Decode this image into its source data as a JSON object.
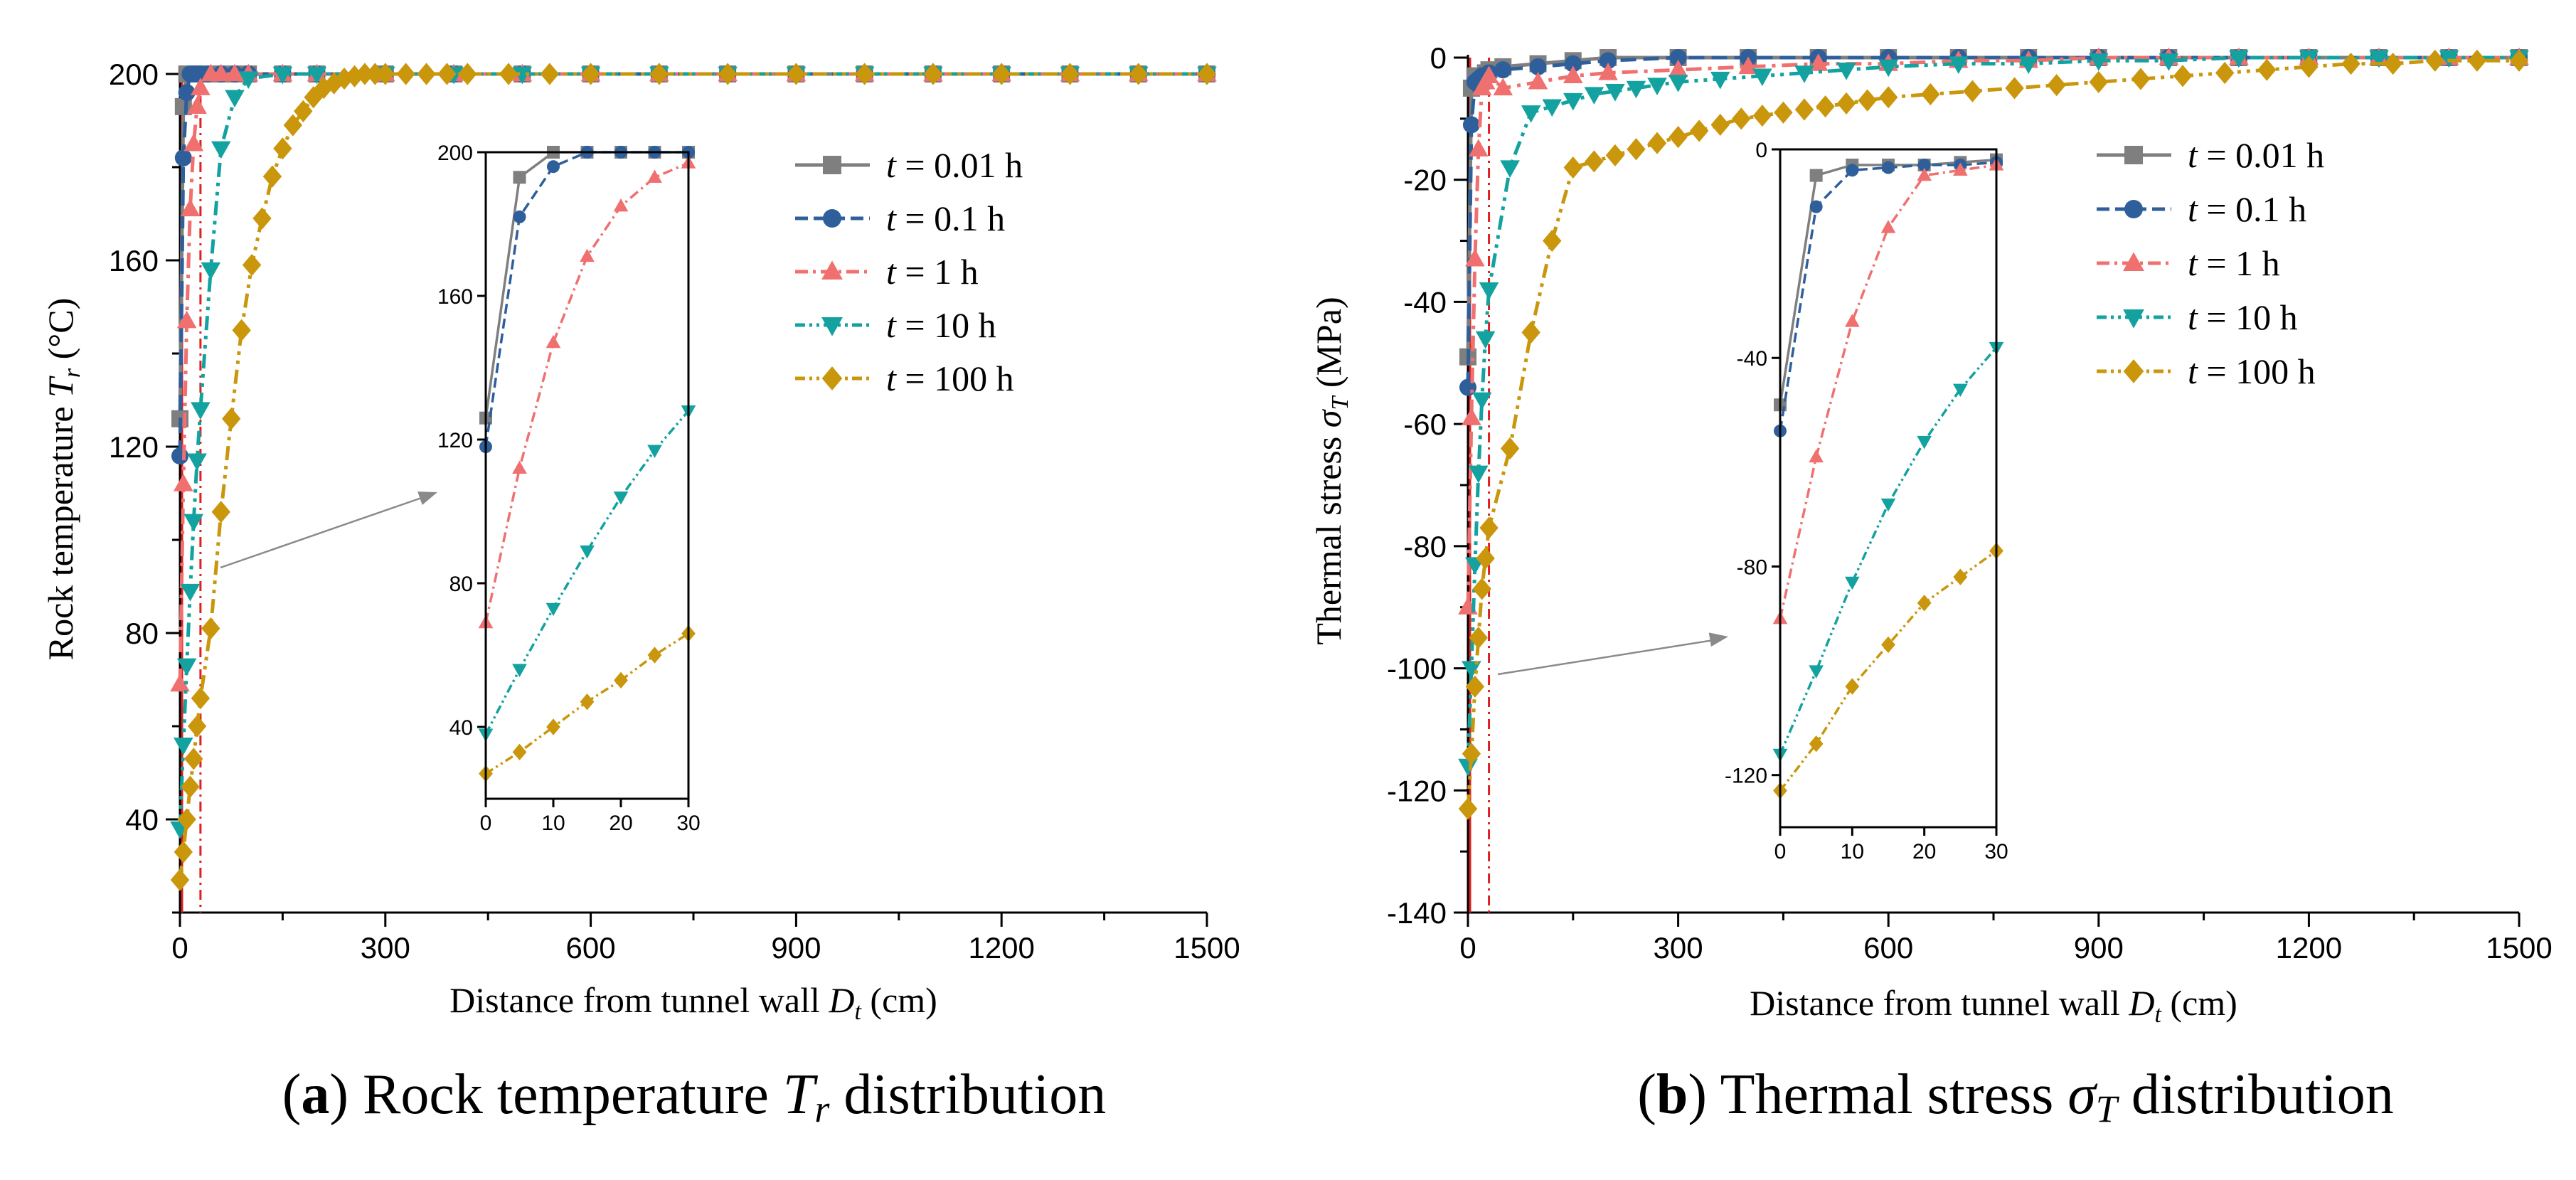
{
  "chart_data": [
    {
      "type": "line",
      "panel": "a",
      "caption": {
        "letter": "a",
        "text": "Rock temperature",
        "symbol": "T",
        "sub": "r",
        "tail": "distribution"
      },
      "xlabel": {
        "text": "Distance from tunnel wall",
        "symbol": "D",
        "sub": "t",
        "unit": "(cm)"
      },
      "ylabel": {
        "text": "Rock temperature",
        "symbol": "T",
        "sub": "r",
        "unit": "(°C)"
      },
      "xlim": [
        0,
        1500
      ],
      "ylim": [
        20,
        200
      ],
      "xticks": [
        "0",
        "300",
        "600",
        "900",
        "1200",
        "1500"
      ],
      "yticks": [
        "40",
        "80",
        "120",
        "160",
        "200"
      ],
      "ytick_values": [
        40,
        80,
        120,
        160,
        200
      ],
      "series": [
        {
          "name": "t = 0.01 h",
          "t_label": "t",
          "rest": " = 0.01 h",
          "color": "#7f7f7f",
          "marker": "square",
          "dash": "solid",
          "x": [
            0,
            5,
            10,
            15,
            20,
            25,
            30,
            40,
            60,
            80,
            100,
            150,
            200,
            300,
            400,
            500,
            600,
            700,
            800,
            900,
            1000,
            1100,
            1200,
            1300,
            1400,
            1500
          ],
          "y": [
            126,
            193,
            200,
            200,
            200,
            200,
            200,
            200,
            200,
            200,
            200,
            200,
            200,
            200,
            200,
            200,
            200,
            200,
            200,
            200,
            200,
            200,
            200,
            200,
            200,
            200
          ]
        },
        {
          "name": "t = 0.1 h",
          "t_label": "t",
          "rest": " = 0.1 h",
          "color": "#2e5f9b",
          "marker": "circle",
          "dash": "dash",
          "x": [
            0,
            5,
            10,
            15,
            20,
            25,
            30,
            40,
            60,
            80,
            100,
            150,
            200,
            300,
            400,
            500,
            600,
            700,
            800,
            900,
            1000,
            1100,
            1200,
            1300,
            1400,
            1500
          ],
          "y": [
            118,
            182,
            196,
            200,
            200,
            200,
            200,
            200,
            200,
            200,
            200,
            200,
            200,
            200,
            200,
            200,
            200,
            200,
            200,
            200,
            200,
            200,
            200,
            200,
            200,
            200
          ]
        },
        {
          "name": "t = 1 h",
          "t_label": "t",
          "rest": " = 1 h",
          "color": "#f07070",
          "marker": "triangle-up",
          "dash": "dashdot",
          "x": [
            0,
            5,
            10,
            15,
            20,
            25,
            30,
            45,
            60,
            80,
            100,
            150,
            200,
            300,
            400,
            500,
            600,
            700,
            800,
            900,
            1000,
            1100,
            1200,
            1300,
            1400,
            1500
          ],
          "y": [
            69,
            112,
            147,
            171,
            185,
            193,
            197,
            200,
            200,
            200,
            200,
            200,
            200,
            200,
            200,
            200,
            200,
            200,
            200,
            200,
            200,
            200,
            200,
            200,
            200,
            200
          ]
        },
        {
          "name": "t = 10 h",
          "t_label": "t",
          "rest": " = 10 h",
          "color": "#13a2a0",
          "marker": "triangle-down",
          "dash": "dashdotdot",
          "x": [
            0,
            5,
            10,
            15,
            20,
            25,
            30,
            45,
            60,
            80,
            100,
            150,
            200,
            300,
            400,
            500,
            600,
            700,
            800,
            900,
            1000,
            1100,
            1200,
            1300,
            1400,
            1500
          ],
          "y": [
            38,
            56,
            73,
            89,
            104,
            117,
            128,
            158,
            184,
            195,
            199,
            200,
            200,
            200,
            200,
            200,
            200,
            200,
            200,
            200,
            200,
            200,
            200,
            200,
            200,
            200
          ]
        },
        {
          "name": "t = 100 h",
          "t_label": "t",
          "rest": " = 100 h",
          "color": "#c9960c",
          "marker": "diamond",
          "dash": "dashdotdot",
          "x": [
            0,
            5,
            10,
            15,
            20,
            25,
            30,
            45,
            60,
            75,
            90,
            105,
            120,
            135,
            150,
            165,
            180,
            195,
            210,
            225,
            240,
            255,
            270,
            285,
            300,
            330,
            360,
            390,
            420,
            480,
            540,
            600,
            700,
            800,
            900,
            1000,
            1100,
            1200,
            1300,
            1400,
            1500
          ],
          "y": [
            27,
            33,
            40,
            47,
            53,
            60,
            66,
            81,
            106,
            126,
            145,
            159,
            169,
            178,
            184,
            189,
            192,
            195,
            197,
            198,
            199,
            199.5,
            200,
            200,
            200,
            200,
            200,
            200,
            200,
            200,
            200,
            200,
            200,
            200,
            200,
            200,
            200,
            200,
            200,
            200,
            200
          ]
        }
      ],
      "inset": {
        "xlim": [
          0,
          30
        ],
        "ylim": [
          20,
          200
        ],
        "xticks": [
          "0",
          "10",
          "20",
          "30"
        ],
        "xtick_values": [
          0,
          10,
          20,
          30
        ],
        "yticks": [
          "40",
          "80",
          "120",
          "160",
          "200"
        ],
        "ytick_values": [
          40,
          80,
          120,
          160,
          200
        ]
      }
    },
    {
      "type": "line",
      "panel": "b",
      "caption": {
        "letter": "b",
        "text": "Thermal stress",
        "symbol": "σ",
        "sub": "T",
        "tail": "distribution"
      },
      "xlabel": {
        "text": "Distance from tunnel wall",
        "symbol": "D",
        "sub": "t",
        "unit": "(cm)"
      },
      "ylabel": {
        "text": "Thermal stress",
        "symbol": "σ",
        "sub": "T",
        "unit": "(MPa)"
      },
      "xlim": [
        0,
        1500
      ],
      "ylim": [
        -140,
        0
      ],
      "xticks": [
        "0",
        "300",
        "600",
        "900",
        "1200",
        "1500"
      ],
      "yticks": [
        "0",
        "-20",
        "-40",
        "-60",
        "-80",
        "-100",
        "-120",
        "-140"
      ],
      "ytick_values": [
        0,
        -20,
        -40,
        -60,
        -80,
        -100,
        -120,
        -140
      ],
      "series": [
        {
          "name": "t = 0.01 h",
          "t_label": "t",
          "rest": " = 0.01 h",
          "color": "#7f7f7f",
          "marker": "square",
          "dash": "solid",
          "x": [
            0,
            5,
            10,
            15,
            20,
            25,
            30,
            50,
            100,
            150,
            200,
            300,
            400,
            500,
            600,
            700,
            800,
            900,
            1000,
            1100,
            1200,
            1300,
            1400,
            1500
          ],
          "y": [
            -49,
            -5,
            -3,
            -3,
            -3,
            -2.5,
            -2,
            -1.5,
            -1,
            -0.5,
            0,
            0,
            0,
            0,
            0,
            0,
            0,
            0,
            0,
            0,
            0,
            0,
            0,
            0
          ]
        },
        {
          "name": "t = 0.1 h",
          "t_label": "t",
          "rest": " = 0.1 h",
          "color": "#2e5f9b",
          "marker": "circle",
          "dash": "dash",
          "x": [
            0,
            5,
            10,
            15,
            20,
            25,
            30,
            50,
            100,
            150,
            200,
            300,
            400,
            500,
            600,
            700,
            800,
            900,
            1000,
            1100,
            1200,
            1300,
            1400,
            1500
          ],
          "y": [
            -54,
            -11,
            -4,
            -3.5,
            -3,
            -3,
            -2.5,
            -2,
            -1.5,
            -1,
            -0.5,
            0,
            0,
            0,
            0,
            0,
            0,
            0,
            0,
            0,
            0,
            0,
            0,
            0
          ]
        },
        {
          "name": "t = 1 h",
          "t_label": "t",
          "rest": " = 1 h",
          "color": "#f07070",
          "marker": "triangle-up",
          "dash": "dashdot",
          "x": [
            0,
            5,
            10,
            15,
            20,
            25,
            30,
            50,
            100,
            150,
            200,
            300,
            400,
            500,
            600,
            700,
            800,
            900,
            1000,
            1100,
            1200,
            1300,
            1400,
            1500
          ],
          "y": [
            -90,
            -59,
            -33,
            -15,
            -5,
            -4,
            -3,
            -5,
            -4,
            -3,
            -2.5,
            -2,
            -1.5,
            -1,
            -1,
            -0.5,
            -0.5,
            0,
            0,
            0,
            0,
            0,
            0,
            0
          ]
        },
        {
          "name": "t = 10 h",
          "t_label": "t",
          "rest": " = 10 h",
          "color": "#13a2a0",
          "marker": "triangle-down",
          "dash": "dashdotdot",
          "x": [
            0,
            5,
            10,
            15,
            20,
            25,
            30,
            60,
            90,
            120,
            150,
            180,
            210,
            240,
            270,
            300,
            360,
            420,
            480,
            540,
            600,
            700,
            800,
            900,
            1000,
            1100,
            1200,
            1300,
            1400,
            1500
          ],
          "y": [
            -116,
            -100,
            -83,
            -68,
            -56,
            -46,
            -38,
            -18,
            -9,
            -8,
            -7,
            -6,
            -5.5,
            -5,
            -4.5,
            -4,
            -3.5,
            -3,
            -2.5,
            -2,
            -1.5,
            -1,
            -1,
            -0.5,
            -0.5,
            0,
            0,
            0,
            0,
            0
          ]
        },
        {
          "name": "t = 100 h",
          "t_label": "t",
          "rest": " = 100 h",
          "color": "#c9960c",
          "marker": "diamond",
          "dash": "dashdotdot",
          "x": [
            0,
            5,
            10,
            15,
            20,
            25,
            30,
            60,
            90,
            120,
            150,
            180,
            210,
            240,
            270,
            300,
            330,
            360,
            390,
            420,
            450,
            480,
            510,
            540,
            570,
            600,
            660,
            720,
            780,
            840,
            900,
            960,
            1020,
            1080,
            1140,
            1200,
            1260,
            1320,
            1380,
            1440,
            1500
          ],
          "y": [
            -123,
            -114,
            -103,
            -95,
            -87,
            -82,
            -77,
            -64,
            -45,
            -30,
            -18,
            -17,
            -16,
            -15,
            -14,
            -13,
            -12,
            -11,
            -10,
            -9.5,
            -9,
            -8.5,
            -8,
            -7.5,
            -7,
            -6.5,
            -6,
            -5.5,
            -5,
            -4.5,
            -4,
            -3.5,
            -3,
            -2.5,
            -2,
            -1.5,
            -1,
            -1,
            -0.5,
            -0.5,
            -0.5
          ]
        }
      ],
      "inset": {
        "xlim": [
          0,
          30
        ],
        "ylim": [
          -130,
          0
        ],
        "xticks": [
          "0",
          "10",
          "20",
          "30"
        ],
        "xtick_values": [
          0,
          10,
          20,
          30
        ],
        "yticks": [
          "0",
          "-40",
          "-80",
          "-120"
        ],
        "ytick_values": [
          0,
          -40,
          -80,
          -120
        ]
      }
    }
  ]
}
